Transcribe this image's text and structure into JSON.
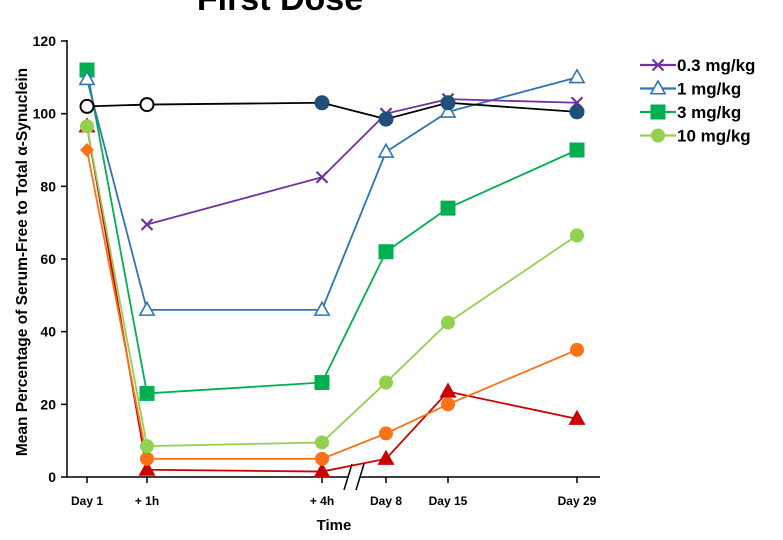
{
  "chart_data": {
    "type": "line",
    "title": "First Dose",
    "xlabel": "Time",
    "ylabel": "Mean Percentage of Serum-Free to Total α-Synuclein",
    "ylim": [
      0,
      120
    ],
    "yticks": [
      0,
      20,
      40,
      60,
      80,
      100,
      120
    ],
    "categories": [
      "Day 1",
      "+ 1h",
      "+ 4h",
      "Day 8",
      "Day 15",
      "Day 29"
    ],
    "axis_break": "between + 4h and Day 8",
    "grid": false,
    "legend_position": "right",
    "series": [
      {
        "name": "",
        "color": "#000000",
        "marker": "circle-open-then-filled",
        "values": [
          102,
          102.5,
          103,
          98.5,
          103,
          100.5
        ]
      },
      {
        "name": "0.3 mg/kg",
        "color": "#7030A0",
        "marker": "x",
        "values": [
          null,
          69.5,
          82.5,
          100,
          104,
          103
        ]
      },
      {
        "name": "1 mg/kg",
        "color": "#2E75B6",
        "marker": "triangle-open",
        "values": [
          109.5,
          46,
          46,
          89.5,
          100.5,
          110
        ]
      },
      {
        "name": "3 mg/kg",
        "color": "#00B050",
        "marker": "square",
        "values": [
          112,
          23,
          26,
          62,
          74,
          90
        ]
      },
      {
        "name": "10 mg/kg",
        "color": "#92D050",
        "marker": "circle",
        "values": [
          96.5,
          8.5,
          9.5,
          26,
          42.5,
          66.5
        ]
      },
      {
        "name": "",
        "color": "#F97316",
        "marker": "diamond-then-circle",
        "values": [
          90,
          5,
          5,
          12,
          20,
          35
        ]
      },
      {
        "name": "",
        "color": "#CC0000",
        "marker": "triangle",
        "values": [
          96.5,
          2,
          1.5,
          5,
          23.5,
          16
        ]
      }
    ]
  }
}
